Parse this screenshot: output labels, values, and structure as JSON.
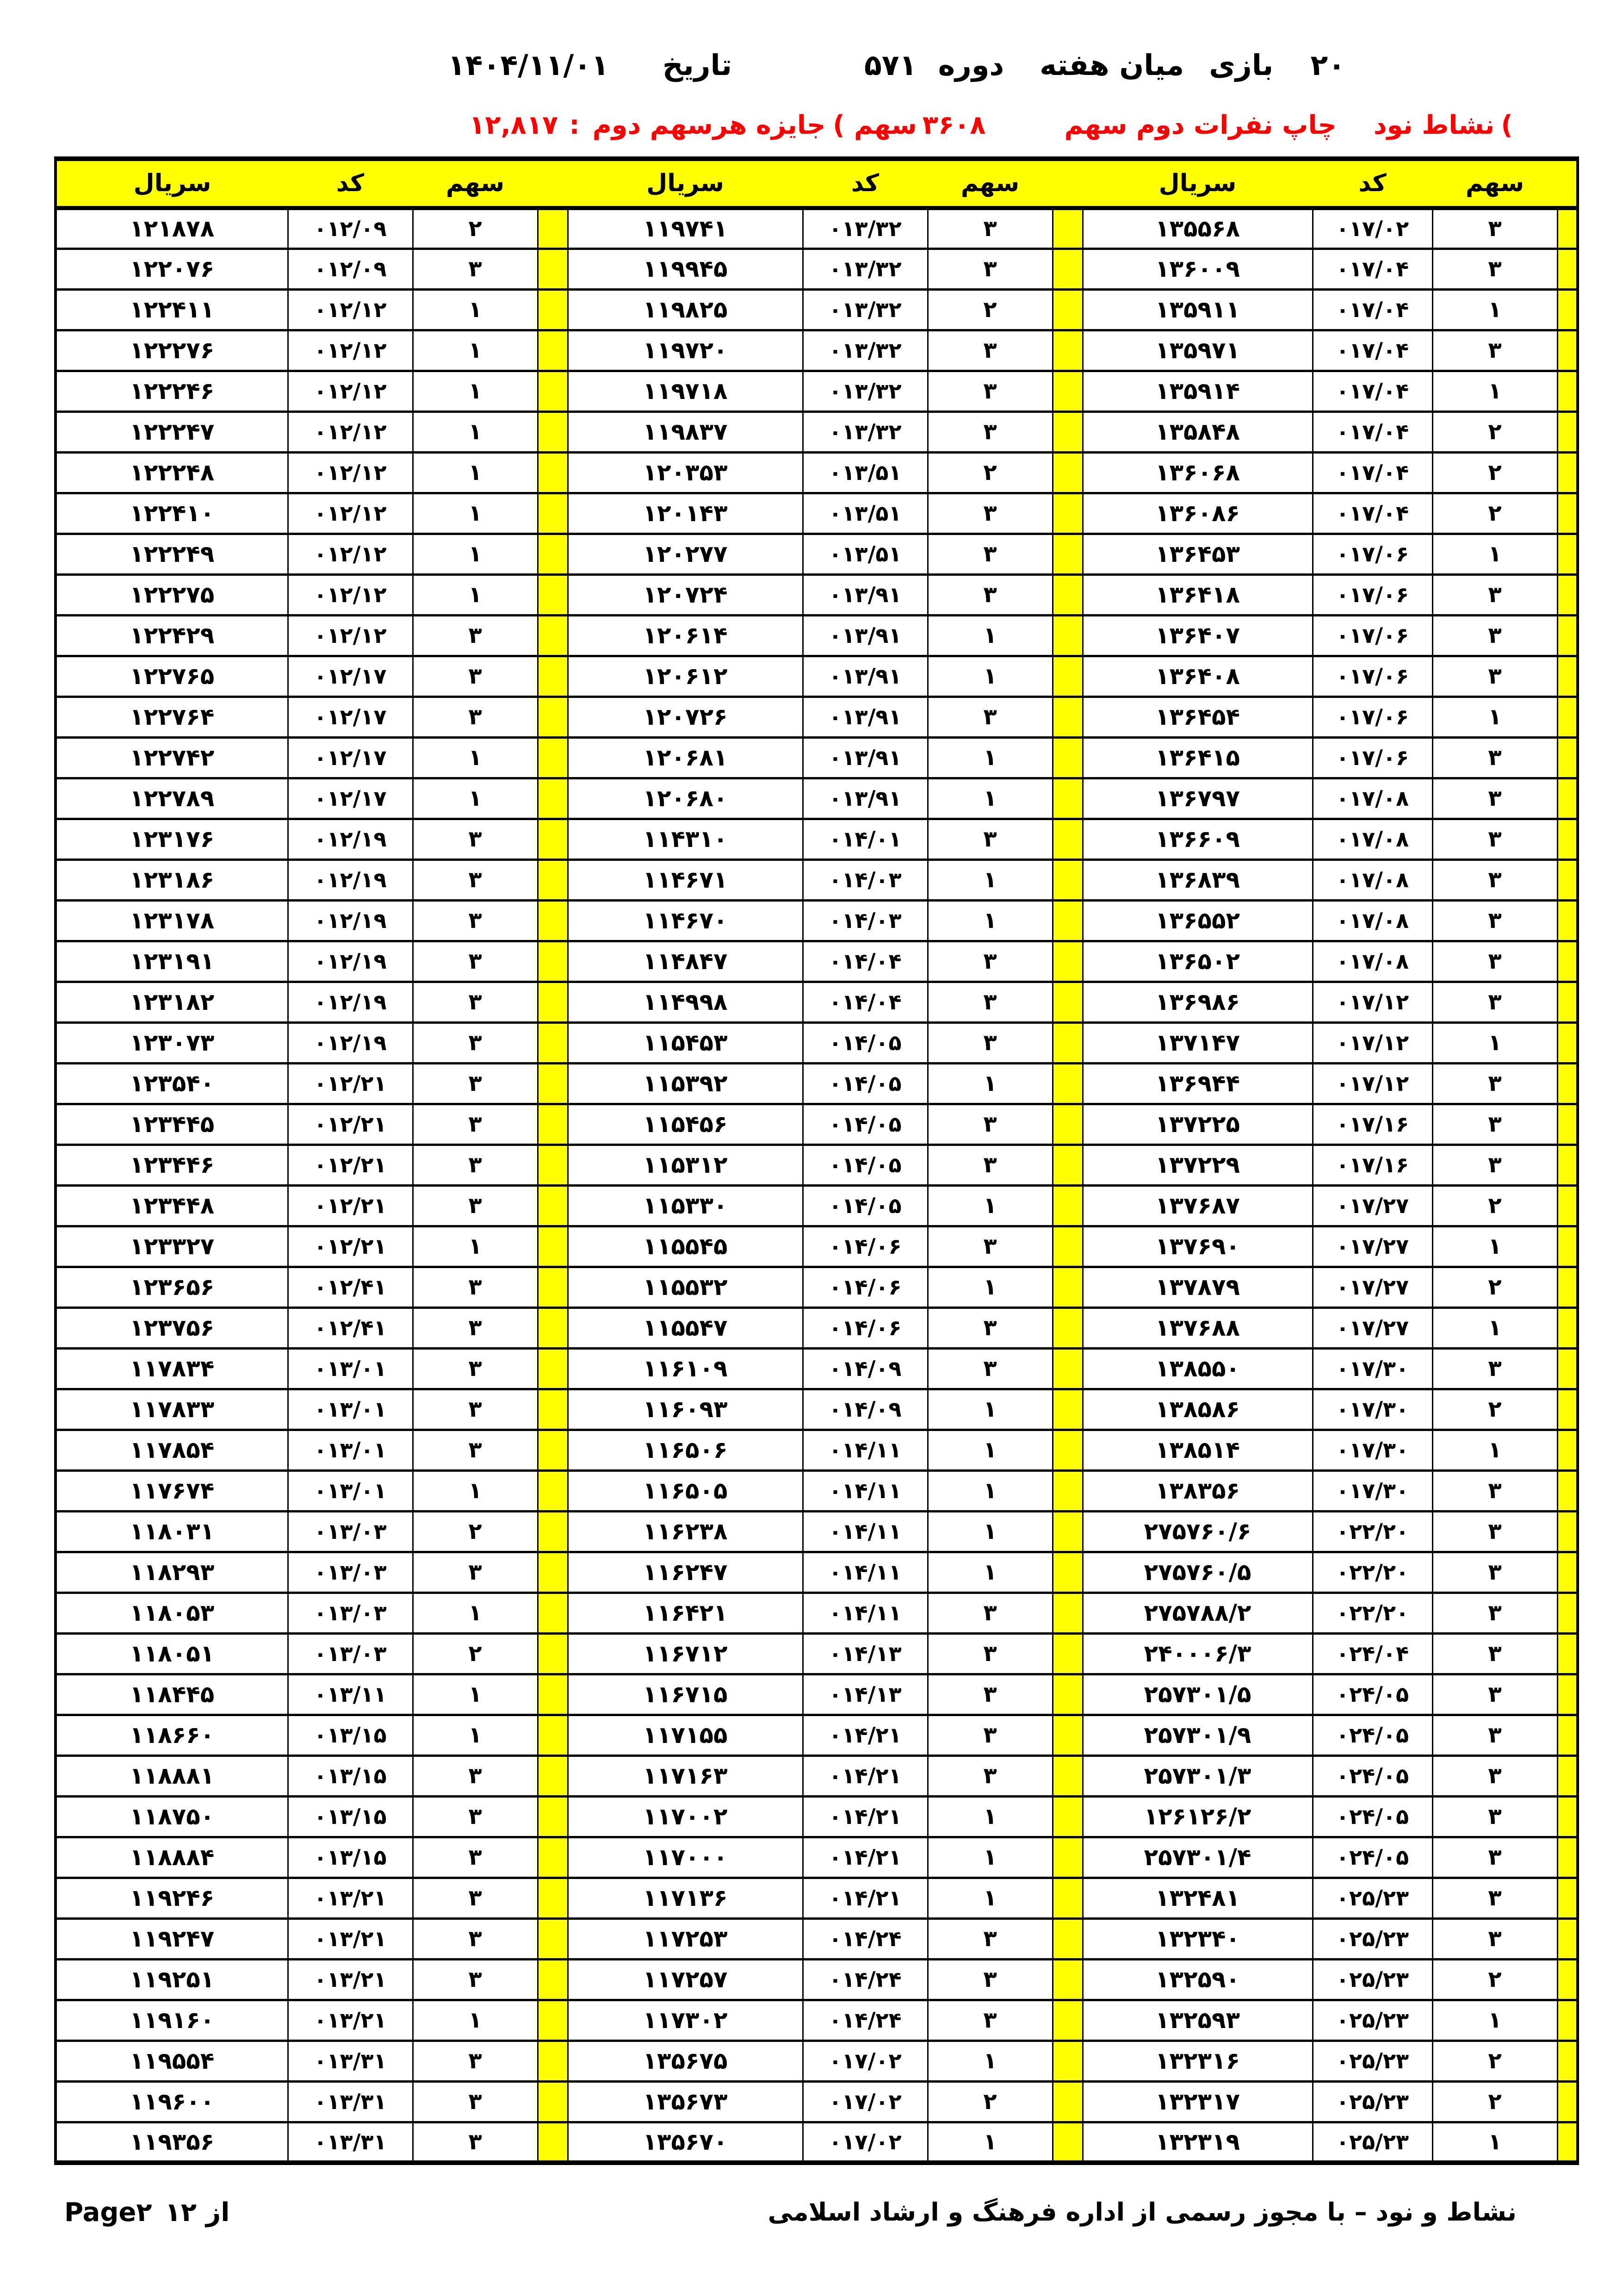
{
  "title": {
    "count": "۲۰",
    "game_label": "بازی",
    "midweek_label": "میان هفته",
    "period_label": "دوره",
    "period_number": "۵۷۱",
    "date_label": "تاریخ",
    "date_value": "۱۴۰۴/۱۱/۰۱"
  },
  "subtitle": {
    "prize_amount": "۱۲,۸۱۷",
    "colon": ":",
    "prize_label": "جایزه هرسهم دوم",
    "paren_mid": "(",
    "shares_word": "سهم",
    "shares_count": "۳۶۰۸",
    "print_label": "چاپ نفرات دوم سهم",
    "brand": "نشاط نود",
    "paren_right": "("
  },
  "table": {
    "header": {
      "serial": "سريال",
      "code": "كد",
      "share": "سهم"
    },
    "rows": [
      {
        "l": [
          "۱۲۱۸۷۸",
          "۰۱۲/۰۹",
          "۲"
        ],
        "m": [
          "۱۱۹۷۴۱",
          "۰۱۳/۳۲",
          "۳"
        ],
        "r": [
          "۱۳۵۵۶۸",
          "۰۱۷/۰۲",
          "۳"
        ]
      },
      {
        "l": [
          "۱۲۲۰۷۶",
          "۰۱۲/۰۹",
          "۳"
        ],
        "m": [
          "۱۱۹۹۴۵",
          "۰۱۳/۳۲",
          "۳"
        ],
        "r": [
          "۱۳۶۰۰۹",
          "۰۱۷/۰۴",
          "۳"
        ]
      },
      {
        "l": [
          "۱۲۲۴۱۱",
          "۰۱۲/۱۲",
          "۱"
        ],
        "m": [
          "۱۱۹۸۲۵",
          "۰۱۳/۳۲",
          "۲"
        ],
        "r": [
          "۱۳۵۹۱۱",
          "۰۱۷/۰۴",
          "۱"
        ]
      },
      {
        "l": [
          "۱۲۲۲۷۶",
          "۰۱۲/۱۲",
          "۱"
        ],
        "m": [
          "۱۱۹۷۲۰",
          "۰۱۳/۳۲",
          "۳"
        ],
        "r": [
          "۱۳۵۹۷۱",
          "۰۱۷/۰۴",
          "۳"
        ]
      },
      {
        "l": [
          "۱۲۲۲۴۶",
          "۰۱۲/۱۲",
          "۱"
        ],
        "m": [
          "۱۱۹۷۱۸",
          "۰۱۳/۳۲",
          "۳"
        ],
        "r": [
          "۱۳۵۹۱۴",
          "۰۱۷/۰۴",
          "۱"
        ]
      },
      {
        "l": [
          "۱۲۲۲۴۷",
          "۰۱۲/۱۲",
          "۱"
        ],
        "m": [
          "۱۱۹۸۳۷",
          "۰۱۳/۳۲",
          "۳"
        ],
        "r": [
          "۱۳۵۸۴۸",
          "۰۱۷/۰۴",
          "۲"
        ]
      },
      {
        "l": [
          "۱۲۲۲۴۸",
          "۰۱۲/۱۲",
          "۱"
        ],
        "m": [
          "۱۲۰۳۵۳",
          "۰۱۳/۵۱",
          "۲"
        ],
        "r": [
          "۱۳۶۰۶۸",
          "۰۱۷/۰۴",
          "۲"
        ]
      },
      {
        "l": [
          "۱۲۲۴۱۰",
          "۰۱۲/۱۲",
          "۱"
        ],
        "m": [
          "۱۲۰۱۴۳",
          "۰۱۳/۵۱",
          "۳"
        ],
        "r": [
          "۱۳۶۰۸۶",
          "۰۱۷/۰۴",
          "۲"
        ]
      },
      {
        "l": [
          "۱۲۲۲۴۹",
          "۰۱۲/۱۲",
          "۱"
        ],
        "m": [
          "۱۲۰۲۷۷",
          "۰۱۳/۵۱",
          "۳"
        ],
        "r": [
          "۱۳۶۴۵۳",
          "۰۱۷/۰۶",
          "۱"
        ]
      },
      {
        "l": [
          "۱۲۲۲۷۵",
          "۰۱۲/۱۲",
          "۱"
        ],
        "m": [
          "۱۲۰۷۲۴",
          "۰۱۳/۹۱",
          "۳"
        ],
        "r": [
          "۱۳۶۴۱۸",
          "۰۱۷/۰۶",
          "۳"
        ]
      },
      {
        "l": [
          "۱۲۲۴۲۹",
          "۰۱۲/۱۲",
          "۳"
        ],
        "m": [
          "۱۲۰۶۱۴",
          "۰۱۳/۹۱",
          "۱"
        ],
        "r": [
          "۱۳۶۴۰۷",
          "۰۱۷/۰۶",
          "۳"
        ]
      },
      {
        "l": [
          "۱۲۲۷۶۵",
          "۰۱۲/۱۷",
          "۳"
        ],
        "m": [
          "۱۲۰۶۱۲",
          "۰۱۳/۹۱",
          "۱"
        ],
        "r": [
          "۱۳۶۴۰۸",
          "۰۱۷/۰۶",
          "۳"
        ]
      },
      {
        "l": [
          "۱۲۲۷۶۴",
          "۰۱۲/۱۷",
          "۳"
        ],
        "m": [
          "۱۲۰۷۲۶",
          "۰۱۳/۹۱",
          "۳"
        ],
        "r": [
          "۱۳۶۴۵۴",
          "۰۱۷/۰۶",
          "۱"
        ]
      },
      {
        "l": [
          "۱۲۲۷۴۲",
          "۰۱۲/۱۷",
          "۱"
        ],
        "m": [
          "۱۲۰۶۸۱",
          "۰۱۳/۹۱",
          "۱"
        ],
        "r": [
          "۱۳۶۴۱۵",
          "۰۱۷/۰۶",
          "۳"
        ]
      },
      {
        "l": [
          "۱۲۲۷۸۹",
          "۰۱۲/۱۷",
          "۱"
        ],
        "m": [
          "۱۲۰۶۸۰",
          "۰۱۳/۹۱",
          "۱"
        ],
        "r": [
          "۱۳۶۷۹۷",
          "۰۱۷/۰۸",
          "۳"
        ]
      },
      {
        "l": [
          "۱۲۳۱۷۶",
          "۰۱۲/۱۹",
          "۳"
        ],
        "m": [
          "۱۱۴۳۱۰",
          "۰۱۴/۰۱",
          "۳"
        ],
        "r": [
          "۱۳۶۶۰۹",
          "۰۱۷/۰۸",
          "۳"
        ]
      },
      {
        "l": [
          "۱۲۳۱۸۶",
          "۰۱۲/۱۹",
          "۳"
        ],
        "m": [
          "۱۱۴۶۷۱",
          "۰۱۴/۰۳",
          "۱"
        ],
        "r": [
          "۱۳۶۸۳۹",
          "۰۱۷/۰۸",
          "۳"
        ]
      },
      {
        "l": [
          "۱۲۳۱۷۸",
          "۰۱۲/۱۹",
          "۳"
        ],
        "m": [
          "۱۱۴۶۷۰",
          "۰۱۴/۰۳",
          "۱"
        ],
        "r": [
          "۱۳۶۵۵۲",
          "۰۱۷/۰۸",
          "۳"
        ]
      },
      {
        "l": [
          "۱۲۳۱۹۱",
          "۰۱۲/۱۹",
          "۳"
        ],
        "m": [
          "۱۱۴۸۴۷",
          "۰۱۴/۰۴",
          "۳"
        ],
        "r": [
          "۱۳۶۵۰۲",
          "۰۱۷/۰۸",
          "۳"
        ]
      },
      {
        "l": [
          "۱۲۳۱۸۲",
          "۰۱۲/۱۹",
          "۳"
        ],
        "m": [
          "۱۱۴۹۹۸",
          "۰۱۴/۰۴",
          "۳"
        ],
        "r": [
          "۱۳۶۹۸۶",
          "۰۱۷/۱۲",
          "۳"
        ]
      },
      {
        "l": [
          "۱۲۳۰۷۳",
          "۰۱۲/۱۹",
          "۳"
        ],
        "m": [
          "۱۱۵۴۵۳",
          "۰۱۴/۰۵",
          "۳"
        ],
        "r": [
          "۱۳۷۱۴۷",
          "۰۱۷/۱۲",
          "۱"
        ]
      },
      {
        "l": [
          "۱۲۳۵۴۰",
          "۰۱۲/۲۱",
          "۳"
        ],
        "m": [
          "۱۱۵۳۹۲",
          "۰۱۴/۰۵",
          "۱"
        ],
        "r": [
          "۱۳۶۹۴۴",
          "۰۱۷/۱۲",
          "۳"
        ]
      },
      {
        "l": [
          "۱۲۳۴۴۵",
          "۰۱۲/۲۱",
          "۳"
        ],
        "m": [
          "۱۱۵۴۵۶",
          "۰۱۴/۰۵",
          "۳"
        ],
        "r": [
          "۱۳۷۲۲۵",
          "۰۱۷/۱۶",
          "۳"
        ]
      },
      {
        "l": [
          "۱۲۳۴۴۶",
          "۰۱۲/۲۱",
          "۳"
        ],
        "m": [
          "۱۱۵۳۱۲",
          "۰۱۴/۰۵",
          "۳"
        ],
        "r": [
          "۱۳۷۲۲۹",
          "۰۱۷/۱۶",
          "۳"
        ]
      },
      {
        "l": [
          "۱۲۳۴۴۸",
          "۰۱۲/۲۱",
          "۳"
        ],
        "m": [
          "۱۱۵۳۳۰",
          "۰۱۴/۰۵",
          "۱"
        ],
        "r": [
          "۱۳۷۶۸۷",
          "۰۱۷/۲۷",
          "۲"
        ]
      },
      {
        "l": [
          "۱۲۳۳۲۷",
          "۰۱۲/۲۱",
          "۱"
        ],
        "m": [
          "۱۱۵۵۴۵",
          "۰۱۴/۰۶",
          "۳"
        ],
        "r": [
          "۱۳۷۶۹۰",
          "۰۱۷/۲۷",
          "۱"
        ]
      },
      {
        "l": [
          "۱۲۳۶۵۶",
          "۰۱۲/۴۱",
          "۳"
        ],
        "m": [
          "۱۱۵۵۳۲",
          "۰۱۴/۰۶",
          "۱"
        ],
        "r": [
          "۱۳۷۸۷۹",
          "۰۱۷/۲۷",
          "۲"
        ]
      },
      {
        "l": [
          "۱۲۳۷۵۶",
          "۰۱۲/۴۱",
          "۳"
        ],
        "m": [
          "۱۱۵۵۴۷",
          "۰۱۴/۰۶",
          "۳"
        ],
        "r": [
          "۱۳۷۶۸۸",
          "۰۱۷/۲۷",
          "۱"
        ]
      },
      {
        "l": [
          "۱۱۷۸۳۴",
          "۰۱۳/۰۱",
          "۳"
        ],
        "m": [
          "۱۱۶۱۰۹",
          "۰۱۴/۰۹",
          "۳"
        ],
        "r": [
          "۱۳۸۵۵۰",
          "۰۱۷/۳۰",
          "۳"
        ]
      },
      {
        "l": [
          "۱۱۷۸۳۳",
          "۰۱۳/۰۱",
          "۳"
        ],
        "m": [
          "۱۱۶۰۹۳",
          "۰۱۴/۰۹",
          "۱"
        ],
        "r": [
          "۱۳۸۵۸۶",
          "۰۱۷/۳۰",
          "۲"
        ]
      },
      {
        "l": [
          "۱۱۷۸۵۴",
          "۰۱۳/۰۱",
          "۳"
        ],
        "m": [
          "۱۱۶۵۰۶",
          "۰۱۴/۱۱",
          "۱"
        ],
        "r": [
          "۱۳۸۵۱۴",
          "۰۱۷/۳۰",
          "۱"
        ]
      },
      {
        "l": [
          "۱۱۷۶۷۴",
          "۰۱۳/۰۱",
          "۱"
        ],
        "m": [
          "۱۱۶۵۰۵",
          "۰۱۴/۱۱",
          "۱"
        ],
        "r": [
          "۱۳۸۳۵۶",
          "۰۱۷/۳۰",
          "۳"
        ]
      },
      {
        "l": [
          "۱۱۸۰۳۱",
          "۰۱۳/۰۳",
          "۲"
        ],
        "m": [
          "۱۱۶۲۳۸",
          "۰۱۴/۱۱",
          "۱"
        ],
        "r": [
          "۲۷۵۷۶۰/۶",
          "۰۲۲/۲۰",
          "۳"
        ]
      },
      {
        "l": [
          "۱۱۸۲۹۳",
          "۰۱۳/۰۳",
          "۳"
        ],
        "m": [
          "۱۱۶۲۴۷",
          "۰۱۴/۱۱",
          "۱"
        ],
        "r": [
          "۲۷۵۷۶۰/۵",
          "۰۲۲/۲۰",
          "۳"
        ]
      },
      {
        "l": [
          "۱۱۸۰۵۳",
          "۰۱۳/۰۳",
          "۱"
        ],
        "m": [
          "۱۱۶۴۲۱",
          "۰۱۴/۱۱",
          "۳"
        ],
        "r": [
          "۲۷۵۷۸۸/۲",
          "۰۲۲/۲۰",
          "۳"
        ]
      },
      {
        "l": [
          "۱۱۸۰۵۱",
          "۰۱۳/۰۳",
          "۲"
        ],
        "m": [
          "۱۱۶۷۱۲",
          "۰۱۴/۱۳",
          "۳"
        ],
        "r": [
          "۲۴۰۰۰۶/۳",
          "۰۲۴/۰۴",
          "۳"
        ]
      },
      {
        "l": [
          "۱۱۸۴۴۵",
          "۰۱۳/۱۱",
          "۱"
        ],
        "m": [
          "۱۱۶۷۱۵",
          "۰۱۴/۱۳",
          "۳"
        ],
        "r": [
          "۲۵۷۳۰۱/۵",
          "۰۲۴/۰۵",
          "۳"
        ]
      },
      {
        "l": [
          "۱۱۸۶۶۰",
          "۰۱۳/۱۵",
          "۱"
        ],
        "m": [
          "۱۱۷۱۵۵",
          "۰۱۴/۲۱",
          "۳"
        ],
        "r": [
          "۲۵۷۳۰۱/۹",
          "۰۲۴/۰۵",
          "۳"
        ]
      },
      {
        "l": [
          "۱۱۸۸۸۱",
          "۰۱۳/۱۵",
          "۳"
        ],
        "m": [
          "۱۱۷۱۶۳",
          "۰۱۴/۲۱",
          "۳"
        ],
        "r": [
          "۲۵۷۳۰۱/۳",
          "۰۲۴/۰۵",
          "۳"
        ]
      },
      {
        "l": [
          "۱۱۸۷۵۰",
          "۰۱۳/۱۵",
          "۳"
        ],
        "m": [
          "۱۱۷۰۰۲",
          "۰۱۴/۲۱",
          "۱"
        ],
        "r": [
          "۱۲۶۱۲۶/۲",
          "۰۲۴/۰۵",
          "۳"
        ]
      },
      {
        "l": [
          "۱۱۸۸۸۴",
          "۰۱۳/۱۵",
          "۳"
        ],
        "m": [
          "۱۱۷۰۰۰",
          "۰۱۴/۲۱",
          "۱"
        ],
        "r": [
          "۲۵۷۳۰۱/۴",
          "۰۲۴/۰۵",
          "۳"
        ]
      },
      {
        "l": [
          "۱۱۹۲۴۶",
          "۰۱۳/۲۱",
          "۳"
        ],
        "m": [
          "۱۱۷۱۳۶",
          "۰۱۴/۲۱",
          "۱"
        ],
        "r": [
          "۱۳۲۴۸۱",
          "۰۲۵/۲۳",
          "۳"
        ]
      },
      {
        "l": [
          "۱۱۹۲۴۷",
          "۰۱۳/۲۱",
          "۳"
        ],
        "m": [
          "۱۱۷۲۵۳",
          "۰۱۴/۲۴",
          "۳"
        ],
        "r": [
          "۱۳۲۳۴۰",
          "۰۲۵/۲۳",
          "۳"
        ]
      },
      {
        "l": [
          "۱۱۹۲۵۱",
          "۰۱۳/۲۱",
          "۳"
        ],
        "m": [
          "۱۱۷۲۵۷",
          "۰۱۴/۲۴",
          "۳"
        ],
        "r": [
          "۱۳۲۵۹۰",
          "۰۲۵/۲۳",
          "۲"
        ]
      },
      {
        "l": [
          "۱۱۹۱۶۰",
          "۰۱۳/۲۱",
          "۱"
        ],
        "m": [
          "۱۱۷۳۰۲",
          "۰۱۴/۲۴",
          "۳"
        ],
        "r": [
          "۱۳۲۵۹۳",
          "۰۲۵/۲۳",
          "۱"
        ]
      },
      {
        "l": [
          "۱۱۹۵۵۴",
          "۰۱۳/۳۱",
          "۳"
        ],
        "m": [
          "۱۳۵۶۷۵",
          "۰۱۷/۰۲",
          "۱"
        ],
        "r": [
          "۱۳۲۳۱۶",
          "۰۲۵/۲۳",
          "۲"
        ]
      },
      {
        "l": [
          "۱۱۹۶۰۰",
          "۰۱۳/۳۱",
          "۳"
        ],
        "m": [
          "۱۳۵۶۷۳",
          "۰۱۷/۰۲",
          "۲"
        ],
        "r": [
          "۱۳۲۳۱۷",
          "۰۲۵/۲۳",
          "۲"
        ]
      },
      {
        "l": [
          "۱۱۹۳۵۶",
          "۰۱۳/۳۱",
          "۳"
        ],
        "m": [
          "۱۳۵۶۷۰",
          "۰۱۷/۰۲",
          "۱"
        ],
        "r": [
          "۱۳۲۳۱۹",
          "۰۲۵/۲۳",
          "۱"
        ]
      }
    ]
  },
  "footer": {
    "page_label": "Page",
    "page_number": "۲",
    "page_total": "۱۲",
    "of_label": "از",
    "right_text": "نشاط و نود – با مجوز رسمی از اداره فرهنگ و ارشاد اسلامی"
  },
  "colors": {
    "header_bg": "#ffff00",
    "subtitle_red": "#ff0000",
    "border": "#000000"
  }
}
